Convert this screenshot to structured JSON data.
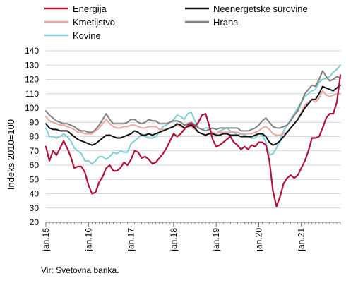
{
  "chart_data": {
    "type": "line",
    "ylabel": "Indeks 2010=100",
    "ylim": [
      20,
      140
    ],
    "yticks": [
      20,
      30,
      40,
      50,
      60,
      70,
      80,
      90,
      100,
      110,
      120,
      130,
      140
    ],
    "xlim": [
      "2015-01",
      "2021-12"
    ],
    "xticks": [
      {
        "label": "jan.15",
        "date": "2015-01"
      },
      {
        "label": "jan.16",
        "date": "2016-01"
      },
      {
        "label": "jan.17",
        "date": "2017-01"
      },
      {
        "label": "jan.18",
        "date": "2018-01"
      },
      {
        "label": "jan.19",
        "date": "2019-01"
      },
      {
        "label": "jan.20",
        "date": "2020-01"
      },
      {
        "label": "jan.21",
        "date": "2021-01"
      }
    ],
    "grid": true,
    "legend_position": "top",
    "source": "Vir: Svetovna banka.",
    "series": [
      {
        "name": "Kovine",
        "color": "#7ecfd6",
        "start": "2015-01",
        "values": [
          86,
          80,
          80,
          79,
          80,
          82,
          80,
          77,
          72,
          70,
          68,
          63,
          63,
          61,
          63,
          66,
          66,
          64,
          66,
          69,
          68,
          70,
          69,
          69,
          75,
          77,
          79,
          82,
          80,
          79,
          79,
          80,
          83,
          87,
          88,
          90,
          92,
          95,
          94,
          92,
          96,
          97,
          91,
          86,
          85,
          86,
          86,
          82,
          82,
          84,
          85,
          86,
          84,
          83,
          81,
          82,
          81,
          80,
          79,
          79,
          82,
          81,
          76,
          67,
          68,
          72,
          77,
          84,
          88,
          92,
          96,
          100,
          104,
          108,
          110,
          112,
          113,
          118,
          120,
          121,
          122,
          125,
          127,
          130
        ]
      },
      {
        "name": "Hrana",
        "color": "#808080",
        "start": "2015-01",
        "values": [
          98,
          95,
          93,
          91,
          90,
          89,
          89,
          88,
          87,
          85,
          84,
          84,
          83,
          83,
          85,
          88,
          92,
          96,
          92,
          89,
          89,
          89,
          89,
          90,
          92,
          92,
          90,
          89,
          90,
          92,
          91,
          91,
          89,
          89,
          89,
          90,
          91,
          91,
          90,
          88,
          89,
          90,
          88,
          86,
          85,
          84,
          85,
          86,
          85,
          86,
          86,
          86,
          86,
          86,
          86,
          84,
          84,
          84,
          85,
          86,
          88,
          91,
          93,
          90,
          87,
          86,
          86,
          87,
          88,
          91,
          95,
          98,
          104,
          110,
          113,
          116,
          115,
          120,
          126,
          122,
          119,
          120,
          122,
          121
        ]
      },
      {
        "name": "Kmetijstvo",
        "color": "#eba6a3",
        "start": "2015-01",
        "values": [
          94,
          91,
          90,
          89,
          88,
          88,
          87,
          86,
          85,
          83,
          83,
          82,
          82,
          82,
          84,
          86,
          89,
          92,
          89,
          87,
          86,
          86,
          87,
          87,
          88,
          88,
          87,
          86,
          86,
          87,
          87,
          87,
          85,
          85,
          85,
          86,
          87,
          88,
          87,
          86,
          87,
          87,
          85,
          83,
          82,
          81,
          82,
          83,
          82,
          83,
          83,
          83,
          83,
          83,
          83,
          82,
          82,
          82,
          82,
          83,
          84,
          86,
          87,
          85,
          82,
          81,
          81,
          82,
          83,
          86,
          89,
          92,
          97,
          102,
          104,
          106,
          104,
          107,
          112,
          109,
          108,
          109,
          110,
          110
        ]
      },
      {
        "name": "Neenergetske surovine",
        "color": "#111111",
        "start": "2015-01",
        "values": [
          89,
          86,
          85,
          85,
          84,
          84,
          84,
          82,
          80,
          78,
          77,
          76,
          75,
          74,
          75,
          77,
          79,
          81,
          81,
          80,
          79,
          79,
          80,
          81,
          82,
          84,
          83,
          81,
          81,
          82,
          81,
          82,
          83,
          84,
          85,
          86,
          87,
          89,
          88,
          86,
          87,
          88,
          86,
          83,
          82,
          81,
          82,
          82,
          81,
          81,
          82,
          82,
          81,
          81,
          81,
          80,
          80,
          80,
          80,
          81,
          82,
          82,
          80,
          76,
          74,
          75,
          77,
          80,
          83,
          86,
          89,
          92,
          96,
          100,
          103,
          106,
          106,
          110,
          115,
          114,
          113,
          112,
          114,
          116
        ]
      },
      {
        "name": "Energija",
        "color": "#b0123a",
        "start": "2015-01",
        "values": [
          73,
          63,
          70,
          67,
          72,
          77,
          72,
          66,
          58,
          59,
          59,
          55,
          46,
          40,
          41,
          48,
          52,
          58,
          60,
          56,
          56,
          58,
          62,
          60,
          64,
          70,
          69,
          65,
          66,
          64,
          61,
          62,
          65,
          68,
          72,
          77,
          82,
          80,
          82,
          85,
          88,
          89,
          87,
          90,
          95,
          96,
          88,
          78,
          73,
          74,
          76,
          78,
          80,
          76,
          74,
          71,
          73,
          71,
          74,
          73,
          76,
          76,
          74,
          63,
          42,
          31,
          38,
          47,
          51,
          53,
          51,
          53,
          58,
          63,
          70,
          79,
          79,
          80,
          86,
          93,
          96,
          96,
          104,
          123
        ]
      }
    ]
  }
}
